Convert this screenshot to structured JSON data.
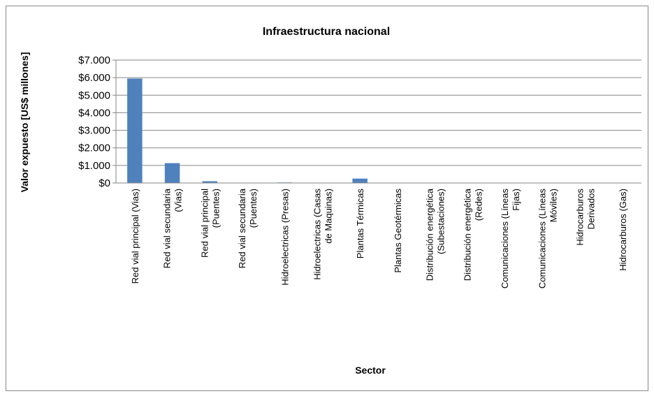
{
  "chart_data": {
    "type": "bar",
    "title": "Infraestructura nacional",
    "x_label": "Sector",
    "y_label": "Valor expuesto [US$ millones]",
    "categories": [
      "Red vial principal (Vias)",
      "Red vial secundaria\n(Vias)",
      "Red vial principal\n(Puentes)",
      "Red vial secundaria\n(Puentes)",
      "Hidroelectricas (Presas)",
      "Hidroelectricas (Casas\nde Maquinas)",
      "Plantas Térmicas",
      "Plantas Geotérmicas",
      "Distribución energética\n(Subestaciones)",
      "Distribución energética\n(Redes)",
      "Comunicaciones (Líneas\nFijas)",
      "Comunicaciones (Líneas\nMóviles)",
      "Hidrocarburos\nDerivados",
      "Hidrocarburos (Gas)"
    ],
    "values": [
      5950,
      1130,
      100,
      10,
      30,
      10,
      250,
      5,
      5,
      5,
      5,
      5,
      0,
      15
    ],
    "color": "#4f81bd",
    "ylim": [
      0,
      7000
    ],
    "yticks": [
      {
        "value": 0,
        "label": "$0"
      },
      {
        "value": 1000,
        "label": "$1.000"
      },
      {
        "value": 2000,
        "label": "$2.000"
      },
      {
        "value": 3000,
        "label": "$3.000"
      },
      {
        "value": 4000,
        "label": "$4.000"
      },
      {
        "value": 5000,
        "label": "$5.000"
      },
      {
        "value": 6000,
        "label": "$6.000"
      },
      {
        "value": 7000,
        "label": "$7.000"
      }
    ],
    "grid": true
  }
}
